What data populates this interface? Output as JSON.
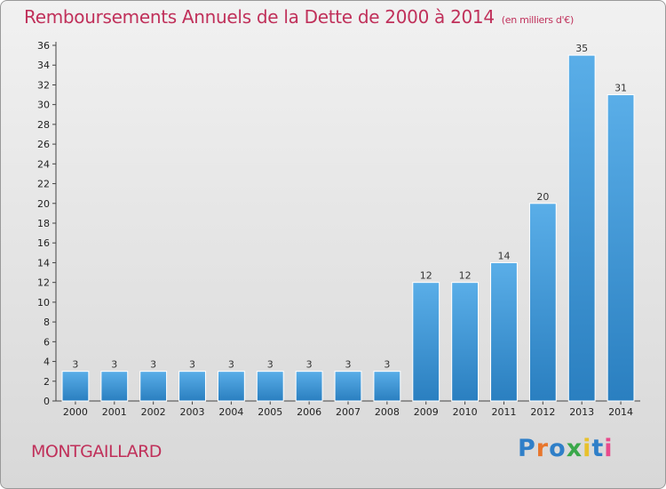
{
  "title": "Remboursements Annuels de la Dette de 2000 à 2014",
  "unit_label": "(en milliers d'€)",
  "commune": "MONTGAILLARD",
  "brand": "Proxiti",
  "colors": {
    "title": "#c0305a",
    "bar": "#3d95d8"
  },
  "chart_data": {
    "type": "bar",
    "title": "Remboursements Annuels de la Dette de 2000 à 2014",
    "xlabel": "",
    "ylabel": "",
    "categories": [
      "2000",
      "2001",
      "2002",
      "2003",
      "2004",
      "2005",
      "2006",
      "2007",
      "2008",
      "2009",
      "2010",
      "2011",
      "2012",
      "2013",
      "2014"
    ],
    "values": [
      3,
      3,
      3,
      3,
      3,
      3,
      3,
      3,
      3,
      12,
      12,
      14,
      20,
      35,
      31
    ],
    "ylim": [
      0,
      36
    ],
    "yticks": [
      0,
      2,
      4,
      6,
      8,
      10,
      12,
      14,
      16,
      18,
      20,
      22,
      24,
      26,
      28,
      30,
      32,
      34,
      36
    ],
    "grid": false,
    "data_labels": true
  }
}
